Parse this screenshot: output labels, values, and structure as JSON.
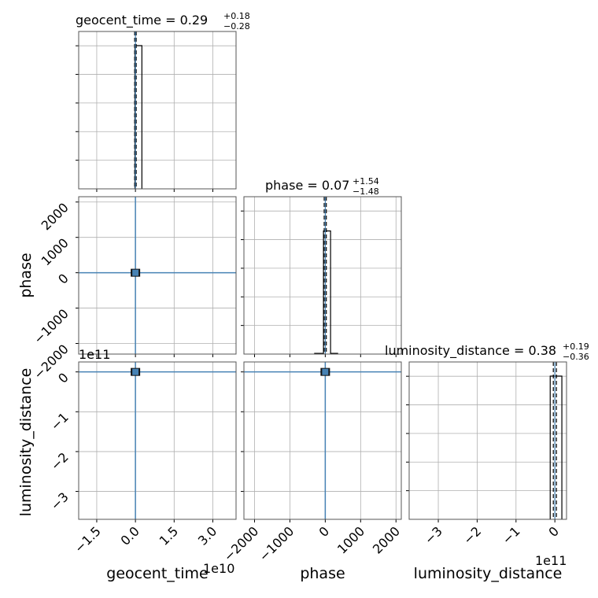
{
  "chart_data": {
    "type": "corner",
    "grid": true,
    "parameters": [
      "geocent_time",
      "phase",
      "luminosity_distance"
    ],
    "colors": {
      "contour": "#4682b4",
      "hist": "#000000",
      "grid": "#b0b0b0"
    },
    "titles": {
      "geocent_time": {
        "label": "geocent_time = 0.29",
        "sup": "+0.18",
        "sub": "−0.28"
      },
      "phase": {
        "label": "phase = 0.07",
        "sup": "+1.54",
        "sub": "−1.48"
      },
      "luminosity_distance": {
        "label": "luminosity_distance = 0.38",
        "sup": "+0.19",
        "sub": "−0.36"
      }
    },
    "axis_labels": {
      "x": [
        "geocent_time",
        "phase",
        "luminosity_distance"
      ],
      "y": [
        "phase",
        "luminosity_distance"
      ]
    },
    "offset_text": {
      "geocent_time_x": "1e10",
      "luminosity_distance_x": "1e11",
      "luminosity_distance_y": "1e11"
    },
    "geocent_time": {
      "xlim": [
        -2.2,
        3.9
      ],
      "ticks": [
        -1.5,
        0.0,
        1.5,
        3.0
      ],
      "tick_labels": [
        "−1.5",
        "0.0",
        "1.5",
        "3.0"
      ],
      "scale_exponent": 10,
      "hist_bins": [
        [
          -0.02,
          0.05,
          1.0
        ],
        [
          0.05,
          0.25,
          1.0
        ]
      ],
      "median": 0.0,
      "quantiles": [
        -0.03,
        0.03
      ]
    },
    "phase": {
      "xlim": [
        -2300,
        2150
      ],
      "ylim": [
        -2300,
        2150
      ],
      "ticks": [
        -2000,
        -1000,
        0,
        1000,
        2000
      ],
      "tick_labels": [
        "−2000",
        "−1000",
        "0",
        "1000",
        "2000"
      ],
      "hist_bins": [
        [
          -300,
          -50,
          0.005
        ],
        [
          -50,
          150,
          0.86
        ],
        [
          150,
          350,
          0.005
        ]
      ],
      "median": 0,
      "quantiles": [
        -30,
        30
      ]
    },
    "luminosity_distance": {
      "xlim": [
        -3.75,
        0.3
      ],
      "ylim": [
        -3.7,
        0.25
      ],
      "ticks": [
        -3,
        -2,
        -1,
        0
      ],
      "tick_labels": [
        "−3",
        "−2",
        "−1",
        "0"
      ],
      "scale_exponent": 11,
      "hist_bins": [
        [
          -0.12,
          0.03,
          1.0
        ],
        [
          0.03,
          0.18,
          1.0
        ]
      ],
      "median": 0.0,
      "quantiles": [
        -0.04,
        0.04
      ]
    },
    "joint": {
      "phase_vs_geocent_time": {
        "center": [
          0.0,
          0
        ],
        "type": "crosshair"
      },
      "luminosity_distance_vs_geocent_time": {
        "center": [
          0.0,
          0.0
        ],
        "type": "crosshair"
      },
      "luminosity_distance_vs_phase": {
        "center": [
          0,
          0.0
        ],
        "type": "crosshair"
      }
    }
  }
}
